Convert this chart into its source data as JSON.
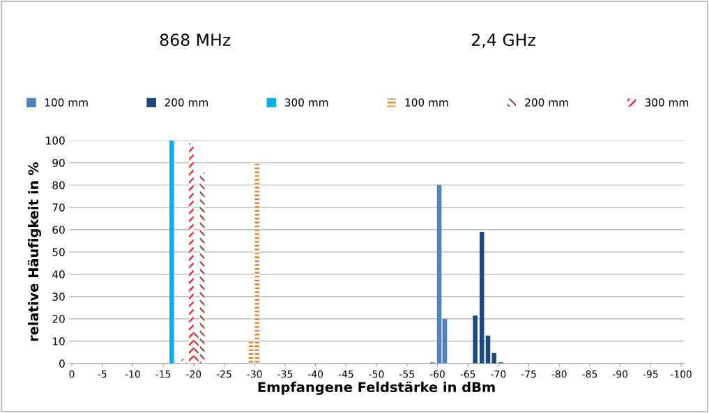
{
  "chart_data": {
    "type": "bar",
    "annotations": [
      "868 MHz",
      "2,4 GHz"
    ],
    "xlabel": "Empfangene Feldstärke in dBm",
    "ylabel": "relative Häufigkeit in %",
    "series": [
      {
        "name": "100 mm",
        "color": "#4f81bd",
        "x": [
          -59.2,
          -60.3,
          -61.2
        ],
        "values": [
          0.5,
          80,
          20
        ]
      },
      {
        "name": "200 mm",
        "color": "#1f497d",
        "x": [
          -66.2,
          -67.3,
          -68.3,
          -69.3,
          -70.4
        ],
        "values": [
          21.5,
          59,
          12.5,
          4.7,
          0.5
        ]
      },
      {
        "name": "300 mm",
        "color": "#00b0f0",
        "x": [
          -16.4
        ],
        "values": [
          100
        ]
      },
      {
        "name": "100 mm",
        "color": "#e46c0a",
        "x": [
          -29.4,
          -30.4
        ],
        "values": [
          10,
          90
        ]
      },
      {
        "name": "200 mm",
        "color": "#943634",
        "x": [
          -20.4,
          -21.4
        ],
        "values": [
          14.7,
          85.6
        ]
      },
      {
        "name": "300 mm",
        "color": "#ff0000",
        "x": [
          -18.4,
          -19.6
        ],
        "values": [
          2,
          98.7
        ]
      }
    ],
    "xlim": [
      0.5,
      -100.5
    ],
    "xticks": [
      0,
      -5,
      -10,
      -15,
      -20,
      -25,
      -30,
      -35,
      -40,
      -45,
      -50,
      -55,
      -60,
      -65,
      -70,
      -75,
      -80,
      -85,
      -90,
      -95,
      -100
    ],
    "ylim": [
      0,
      100
    ],
    "yticks": [
      0,
      10,
      20,
      30,
      40,
      50,
      60,
      70,
      80,
      90,
      100
    ],
    "grid": "y",
    "legend": "top"
  }
}
